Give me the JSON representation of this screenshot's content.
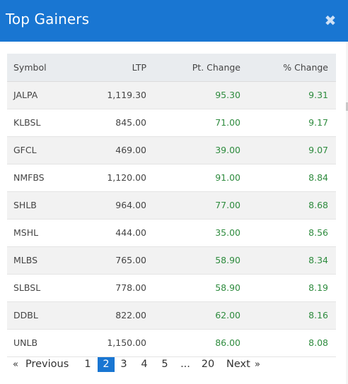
{
  "modal": {
    "title": "Top Gainers",
    "close_icon": "close-icon",
    "accent_color": "#1976d2",
    "positive_color": "#2e8b3e"
  },
  "table": {
    "headers": {
      "symbol": "Symbol",
      "ltp": "LTP",
      "pt_change": "Pt. Change",
      "pct_change": "% Change"
    },
    "rows": [
      {
        "symbol": "JALPA",
        "ltp": "1,119.30",
        "pt_change": "95.30",
        "pct_change": "9.31"
      },
      {
        "symbol": "KLBSL",
        "ltp": "845.00",
        "pt_change": "71.00",
        "pct_change": "9.17"
      },
      {
        "symbol": "GFCL",
        "ltp": "469.00",
        "pt_change": "39.00",
        "pct_change": "9.07"
      },
      {
        "symbol": "NMFBS",
        "ltp": "1,120.00",
        "pt_change": "91.00",
        "pct_change": "8.84"
      },
      {
        "symbol": "SHLB",
        "ltp": "964.00",
        "pt_change": "77.00",
        "pct_change": "8.68"
      },
      {
        "symbol": "MSHL",
        "ltp": "444.00",
        "pt_change": "35.00",
        "pct_change": "8.56"
      },
      {
        "symbol": "MLBS",
        "ltp": "765.00",
        "pt_change": "58.90",
        "pct_change": "8.34"
      },
      {
        "symbol": "SLBSL",
        "ltp": "778.00",
        "pt_change": "58.90",
        "pct_change": "8.19"
      },
      {
        "symbol": "DDBL",
        "ltp": "822.00",
        "pt_change": "62.00",
        "pct_change": "8.16"
      },
      {
        "symbol": "UNLB",
        "ltp": "1,150.00",
        "pt_change": "86.00",
        "pct_change": "8.08"
      }
    ]
  },
  "pagination": {
    "prev_icon": "«",
    "prev_label": "Previous",
    "pages": [
      "1",
      "2",
      "3",
      "4",
      "5"
    ],
    "ellipsis": "...",
    "last_page": "20",
    "current_page": "2",
    "next_label": "Next",
    "next_icon": "»"
  }
}
